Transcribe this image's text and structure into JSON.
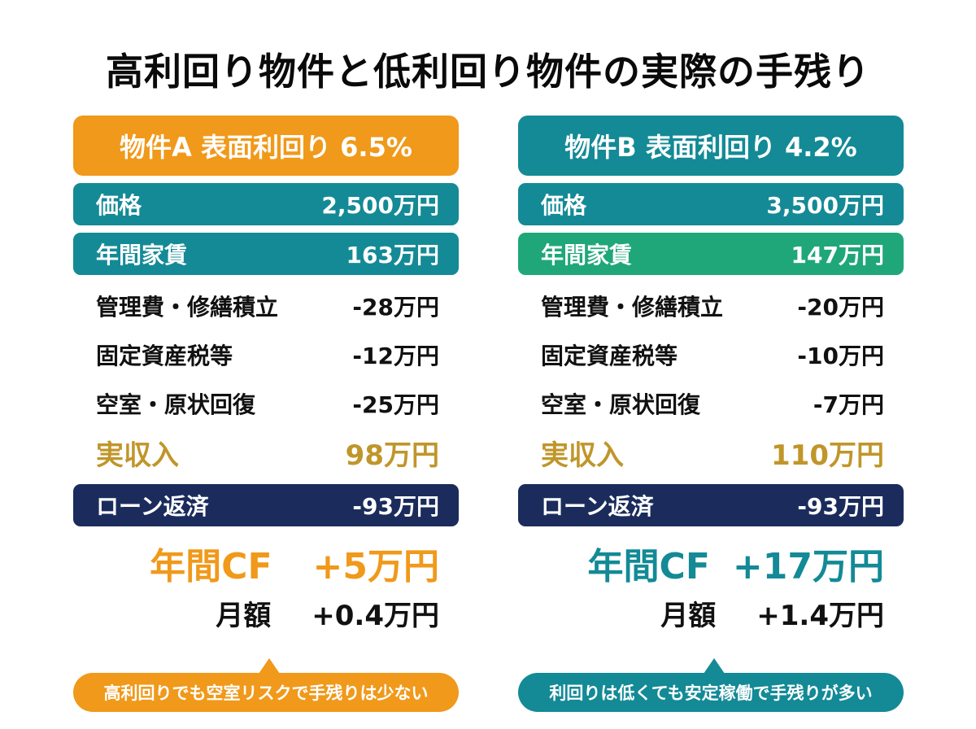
{
  "title": "高利回り物件と低利回り物件の実際の手残り",
  "colors": {
    "orange": "#f0991a",
    "teal": "#138a96",
    "green": "#1fa77a",
    "navy": "#1b2c5c",
    "gold": "#c0962a"
  },
  "property_a": {
    "header": "物件A  表面利回り 6.5%",
    "price": {
      "label": "価格",
      "value": "2,500万円"
    },
    "rent": {
      "label": "年間家賃",
      "value": "163万円"
    },
    "management": {
      "label": "管理費・修繕積立",
      "value": "-28万円"
    },
    "tax": {
      "label": "固定資産税等",
      "value": "-12万円"
    },
    "vacancy": {
      "label": "空室・原状回復",
      "value": "-25万円"
    },
    "net_income": {
      "label": "実収入",
      "value": "98万円"
    },
    "loan": {
      "label": "ローン返済",
      "value": "-93万円"
    },
    "annual_cf": {
      "label": "年間CF",
      "value": "+5万円"
    },
    "monthly": {
      "label": "月額",
      "value": "+0.4万円"
    },
    "callout": "高利回りでも空室リスクで手残りは少ない"
  },
  "property_b": {
    "header": "物件B  表面利回り 4.2%",
    "price": {
      "label": "価格",
      "value": "3,500万円"
    },
    "rent": {
      "label": "年間家賃",
      "value": "147万円"
    },
    "management": {
      "label": "管理費・修繕積立",
      "value": "-20万円"
    },
    "tax": {
      "label": "固定資産税等",
      "value": "-10万円"
    },
    "vacancy": {
      "label": "空室・原状回復",
      "value": "-7万円"
    },
    "net_income": {
      "label": "実収入",
      "value": "110万円"
    },
    "loan": {
      "label": "ローン返済",
      "value": "-93万円"
    },
    "annual_cf": {
      "label": "年間CF",
      "value": "+17万円"
    },
    "monthly": {
      "label": "月額",
      "value": "+1.4万円"
    },
    "callout": "利回りは低くても安定稼働で手残りが多い"
  }
}
